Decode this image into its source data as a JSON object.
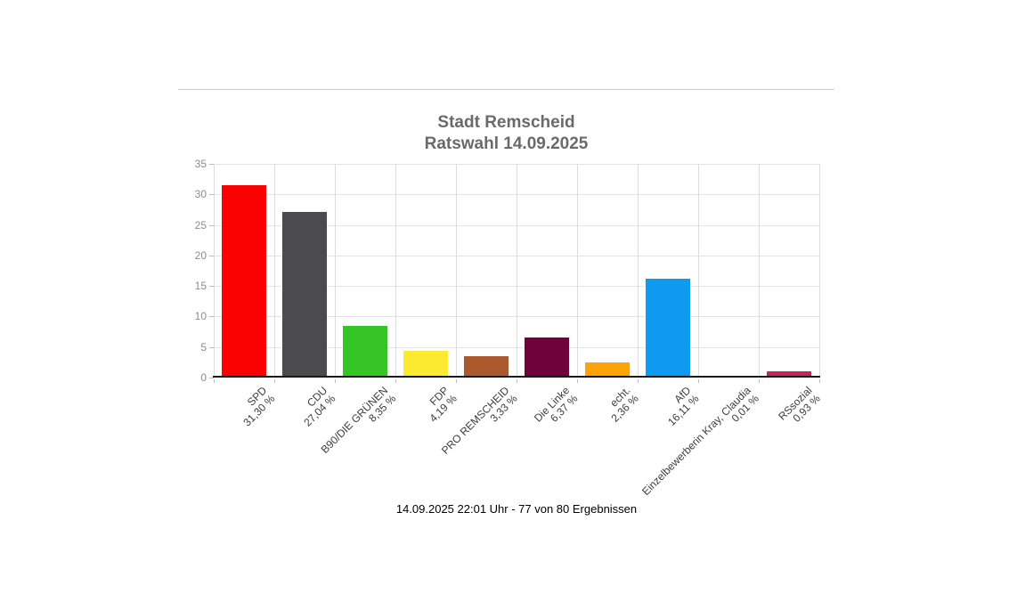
{
  "header": {
    "title_line1": "Stadt Remscheid",
    "title_line2": "Ratswahl 14.09.2025"
  },
  "footer": {
    "status_text": "14.09.2025 22:01 Uhr - 77 von 80 Ergebnissen"
  },
  "chart_data": {
    "type": "bar",
    "title": "Stadt Remscheid Ratswahl 14.09.2025",
    "xlabel": "",
    "ylabel": "",
    "ylim": [
      0,
      35
    ],
    "yticks": [
      0,
      5,
      10,
      15,
      20,
      25,
      30,
      35
    ],
    "grid": true,
    "legend": false,
    "categories": [
      "SPD",
      "CDU",
      "B90/DIE GRÜNEN",
      "FDP",
      "PRO REMSCHEID",
      "Die Linke",
      "echt.",
      "AfD",
      "Einzelbewerberin Kray, Claudia",
      "RSsozial"
    ],
    "value_labels": [
      "31,30 %",
      "27,04 %",
      "8,35 %",
      "4,19 %",
      "3,33 %",
      "6,37 %",
      "2,36 %",
      "16,11 %",
      "0,01 %",
      "0,93 %"
    ],
    "values": [
      31.3,
      27.04,
      8.35,
      4.19,
      3.33,
      6.37,
      2.36,
      16.11,
      0.01,
      0.93
    ],
    "colors": [
      "#fa0202",
      "#4b4b4d",
      "#34c424",
      "#fcea30",
      "#ac5a2d",
      "#6f0339",
      "#fea305",
      "#0e9af1",
      "#999999",
      "#c42559"
    ],
    "axis_color": "#1a1a1a",
    "grid_color": "#e3e3e3",
    "tick_label_color": "#8c8c8c",
    "x_label_color": "#3c3c3c"
  }
}
